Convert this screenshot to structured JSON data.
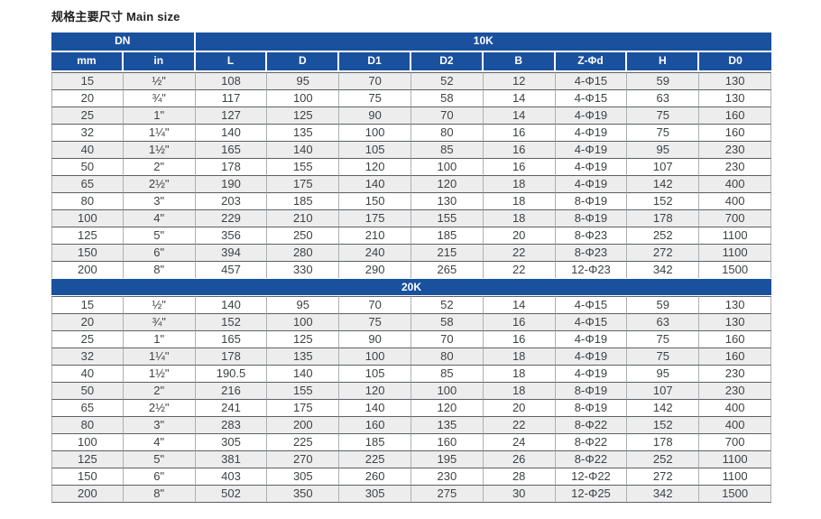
{
  "title": "规格主要尺寸 Main size",
  "table": {
    "dn_label": "DN",
    "columns": [
      "mm",
      "in",
      "L",
      "D",
      "D1",
      "D2",
      "B",
      "Z-Φd",
      "H",
      "D0"
    ],
    "sections": [
      {
        "label": "10K",
        "rows": [
          [
            "15",
            "½\"",
            "108",
            "95",
            "70",
            "52",
            "12",
            "4-Φ15",
            "59",
            "130"
          ],
          [
            "20",
            "¾\"",
            "117",
            "100",
            "75",
            "58",
            "14",
            "4-Φ15",
            "63",
            "130"
          ],
          [
            "25",
            "1\"",
            "127",
            "125",
            "90",
            "70",
            "14",
            "4-Φ19",
            "75",
            "160"
          ],
          [
            "32",
            "1¼\"",
            "140",
            "135",
            "100",
            "80",
            "16",
            "4-Φ19",
            "75",
            "160"
          ],
          [
            "40",
            "1½\"",
            "165",
            "140",
            "105",
            "85",
            "16",
            "4-Φ19",
            "95",
            "230"
          ],
          [
            "50",
            "2\"",
            "178",
            "155",
            "120",
            "100",
            "16",
            "4-Φ19",
            "107",
            "230"
          ],
          [
            "65",
            "2½\"",
            "190",
            "175",
            "140",
            "120",
            "18",
            "4-Φ19",
            "142",
            "400"
          ],
          [
            "80",
            "3\"",
            "203",
            "185",
            "150",
            "130",
            "18",
            "8-Φ19",
            "152",
            "400"
          ],
          [
            "100",
            "4\"",
            "229",
            "210",
            "175",
            "155",
            "18",
            "8-Φ19",
            "178",
            "700"
          ],
          [
            "125",
            "5\"",
            "356",
            "250",
            "210",
            "185",
            "20",
            "8-Φ23",
            "252",
            "1100"
          ],
          [
            "150",
            "6\"",
            "394",
            "280",
            "240",
            "215",
            "22",
            "8-Φ23",
            "272",
            "1100"
          ],
          [
            "200",
            "8\"",
            "457",
            "330",
            "290",
            "265",
            "22",
            "12-Φ23",
            "342",
            "1500"
          ]
        ]
      },
      {
        "label": "20K",
        "rows": [
          [
            "15",
            "½\"",
            "140",
            "95",
            "70",
            "52",
            "14",
            "4-Φ15",
            "59",
            "130"
          ],
          [
            "20",
            "¾\"",
            "152",
            "100",
            "75",
            "58",
            "16",
            "4-Φ15",
            "63",
            "130"
          ],
          [
            "25",
            "1\"",
            "165",
            "125",
            "90",
            "70",
            "16",
            "4-Φ19",
            "75",
            "160"
          ],
          [
            "32",
            "1¼\"",
            "178",
            "135",
            "100",
            "80",
            "18",
            "4-Φ19",
            "75",
            "160"
          ],
          [
            "40",
            "1½\"",
            "190.5",
            "140",
            "105",
            "85",
            "18",
            "4-Φ19",
            "95",
            "230"
          ],
          [
            "50",
            "2\"",
            "216",
            "155",
            "120",
            "100",
            "18",
            "8-Φ19",
            "107",
            "230"
          ],
          [
            "65",
            "2½\"",
            "241",
            "175",
            "140",
            "120",
            "20",
            "8-Φ19",
            "142",
            "400"
          ],
          [
            "80",
            "3\"",
            "283",
            "200",
            "160",
            "135",
            "22",
            "8-Φ22",
            "152",
            "400"
          ],
          [
            "100",
            "4\"",
            "305",
            "225",
            "185",
            "160",
            "24",
            "8-Φ22",
            "178",
            "700"
          ],
          [
            "125",
            "5\"",
            "381",
            "270",
            "225",
            "195",
            "26",
            "8-Φ22",
            "252",
            "1100"
          ],
          [
            "150",
            "6\"",
            "403",
            "305",
            "260",
            "230",
            "28",
            "12-Φ22",
            "272",
            "1100"
          ],
          [
            "200",
            "8\"",
            "502",
            "350",
            "305",
            "275",
            "30",
            "12-Φ25",
            "342",
            "1500"
          ]
        ]
      }
    ]
  },
  "colors": {
    "header_blue": "#1A519F",
    "row_alt": "#EDEDEE",
    "row_bg": "#FFFFFF",
    "border_dark": "#5C6063",
    "border_light": "#ABB0B3",
    "text": "#3E4244",
    "header_text": "#FFFFFF",
    "title_text": "#222222"
  }
}
